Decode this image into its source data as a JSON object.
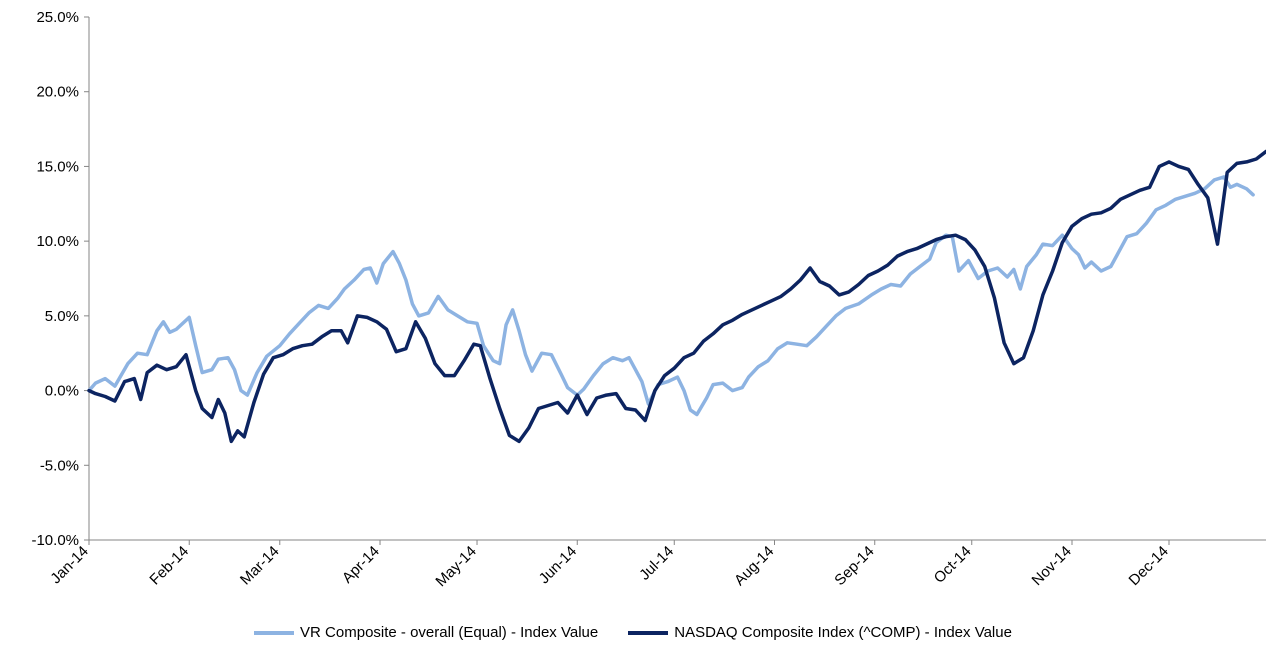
{
  "chart_data": {
    "type": "line",
    "title": "",
    "xlabel": "",
    "ylabel": "",
    "ylim": [
      -0.1,
      0.25
    ],
    "y_ticks": [
      -0.1,
      -0.05,
      0.0,
      0.05,
      0.1,
      0.15,
      0.2,
      0.25
    ],
    "y_tick_labels": [
      "-10.0%",
      "-5.0%",
      "0.0%",
      "5.0%",
      "10.0%",
      "15.0%",
      "20.0%",
      "25.0%"
    ],
    "x_tick_labels": [
      "Jan-14",
      "Feb-14",
      "Mar-14",
      "Apr-14",
      "May-14",
      "Jun-14",
      "Jul-14",
      "Aug-14",
      "Sep-14",
      "Oct-14",
      "Nov-14",
      "Dec-14"
    ],
    "x_start": "2014-01-01",
    "x_end": "2014-12-31",
    "grid": false,
    "legend_position": "bottom",
    "series": [
      {
        "name": "VR Composite - overall (Equal) - Index Value",
        "color": "#8DB3E2",
        "points": [
          [
            "2014-01-01",
            0.0
          ],
          [
            "2014-01-03",
            0.005
          ],
          [
            "2014-01-06",
            0.008
          ],
          [
            "2014-01-09",
            0.003
          ],
          [
            "2014-01-13",
            0.018
          ],
          [
            "2014-01-16",
            0.025
          ],
          [
            "2014-01-19",
            0.024
          ],
          [
            "2014-01-22",
            0.04
          ],
          [
            "2014-01-24",
            0.046
          ],
          [
            "2014-01-26",
            0.039
          ],
          [
            "2014-01-28",
            0.041
          ],
          [
            "2014-02-01",
            0.049
          ],
          [
            "2014-02-03",
            0.03
          ],
          [
            "2014-02-05",
            0.012
          ],
          [
            "2014-02-08",
            0.014
          ],
          [
            "2014-02-10",
            0.021
          ],
          [
            "2014-02-13",
            0.022
          ],
          [
            "2014-02-15",
            0.014
          ],
          [
            "2014-02-17",
            0.0
          ],
          [
            "2014-02-19",
            -0.003
          ],
          [
            "2014-02-22",
            0.012
          ],
          [
            "2014-02-25",
            0.023
          ],
          [
            "2014-03-01",
            0.03
          ],
          [
            "2014-03-04",
            0.038
          ],
          [
            "2014-03-07",
            0.045
          ],
          [
            "2014-03-10",
            0.052
          ],
          [
            "2014-03-13",
            0.057
          ],
          [
            "2014-03-16",
            0.055
          ],
          [
            "2014-03-19",
            0.062
          ],
          [
            "2014-03-21",
            0.068
          ],
          [
            "2014-03-24",
            0.074
          ],
          [
            "2014-03-27",
            0.081
          ],
          [
            "2014-03-29",
            0.082
          ],
          [
            "2014-03-31",
            0.072
          ],
          [
            "2014-04-02",
            0.085
          ],
          [
            "2014-04-05",
            0.093
          ],
          [
            "2014-04-07",
            0.085
          ],
          [
            "2014-04-09",
            0.074
          ],
          [
            "2014-04-11",
            0.058
          ],
          [
            "2014-04-13",
            0.05
          ],
          [
            "2014-04-16",
            0.052
          ],
          [
            "2014-04-19",
            0.063
          ],
          [
            "2014-04-22",
            0.054
          ],
          [
            "2014-04-25",
            0.05
          ],
          [
            "2014-04-28",
            0.046
          ],
          [
            "2014-05-01",
            0.045
          ],
          [
            "2014-05-03",
            0.03
          ],
          [
            "2014-05-06",
            0.02
          ],
          [
            "2014-05-08",
            0.018
          ],
          [
            "2014-05-10",
            0.044
          ],
          [
            "2014-05-12",
            0.054
          ],
          [
            "2014-05-14",
            0.04
          ],
          [
            "2014-05-16",
            0.024
          ],
          [
            "2014-05-18",
            0.013
          ],
          [
            "2014-05-21",
            0.025
          ],
          [
            "2014-05-24",
            0.024
          ],
          [
            "2014-05-27",
            0.011
          ],
          [
            "2014-05-29",
            0.002
          ],
          [
            "2014-06-01",
            -0.003
          ],
          [
            "2014-06-03",
            0.001
          ],
          [
            "2014-06-06",
            0.01
          ],
          [
            "2014-06-09",
            0.018
          ],
          [
            "2014-06-12",
            0.022
          ],
          [
            "2014-06-15",
            0.02
          ],
          [
            "2014-06-17",
            0.022
          ],
          [
            "2014-06-19",
            0.014
          ],
          [
            "2014-06-21",
            0.006
          ],
          [
            "2014-06-23",
            -0.009
          ],
          [
            "2014-06-26",
            0.004
          ],
          [
            "2014-06-29",
            0.006
          ],
          [
            "2014-07-02",
            0.009
          ],
          [
            "2014-07-04",
            0.0
          ],
          [
            "2014-07-06",
            -0.013
          ],
          [
            "2014-07-08",
            -0.016
          ],
          [
            "2014-07-11",
            -0.005
          ],
          [
            "2014-07-13",
            0.004
          ],
          [
            "2014-07-16",
            0.005
          ],
          [
            "2014-07-19",
            0.0
          ],
          [
            "2014-07-22",
            0.002
          ],
          [
            "2014-07-24",
            0.009
          ],
          [
            "2014-07-27",
            0.016
          ],
          [
            "2014-07-30",
            0.02
          ],
          [
            "2014-08-02",
            0.028
          ],
          [
            "2014-08-05",
            0.032
          ],
          [
            "2014-08-08",
            0.031
          ],
          [
            "2014-08-11",
            0.03
          ],
          [
            "2014-08-14",
            0.036
          ],
          [
            "2014-08-17",
            0.043
          ],
          [
            "2014-08-20",
            0.05
          ],
          [
            "2014-08-23",
            0.055
          ],
          [
            "2014-08-27",
            0.058
          ],
          [
            "2014-08-31",
            0.064
          ],
          [
            "2014-09-03",
            0.068
          ],
          [
            "2014-09-06",
            0.071
          ],
          [
            "2014-09-09",
            0.07
          ],
          [
            "2014-09-12",
            0.078
          ],
          [
            "2014-09-15",
            0.083
          ],
          [
            "2014-09-18",
            0.088
          ],
          [
            "2014-09-20",
            0.099
          ],
          [
            "2014-09-23",
            0.104
          ],
          [
            "2014-09-25",
            0.103
          ],
          [
            "2014-09-27",
            0.08
          ],
          [
            "2014-09-30",
            0.087
          ],
          [
            "2014-10-03",
            0.075
          ],
          [
            "2014-10-06",
            0.08
          ],
          [
            "2014-10-09",
            0.082
          ],
          [
            "2014-10-12",
            0.076
          ],
          [
            "2014-10-14",
            0.081
          ],
          [
            "2014-10-16",
            0.068
          ],
          [
            "2014-10-18",
            0.083
          ],
          [
            "2014-10-21",
            0.091
          ],
          [
            "2014-10-23",
            0.098
          ],
          [
            "2014-10-26",
            0.097
          ],
          [
            "2014-10-29",
            0.104
          ],
          [
            "2014-11-01",
            0.095
          ],
          [
            "2014-11-03",
            0.091
          ],
          [
            "2014-11-05",
            0.082
          ],
          [
            "2014-11-07",
            0.086
          ],
          [
            "2014-11-10",
            0.08
          ],
          [
            "2014-11-13",
            0.083
          ],
          [
            "2014-11-15",
            0.091
          ],
          [
            "2014-11-18",
            0.103
          ],
          [
            "2014-11-21",
            0.105
          ],
          [
            "2014-11-24",
            0.112
          ],
          [
            "2014-11-27",
            0.121
          ],
          [
            "2014-11-30",
            0.124
          ],
          [
            "2014-12-03",
            0.128
          ],
          [
            "2014-12-06",
            0.13
          ],
          [
            "2014-12-09",
            0.132
          ],
          [
            "2014-12-12",
            0.135
          ],
          [
            "2014-12-15",
            0.141
          ],
          [
            "2014-12-18",
            0.143
          ],
          [
            "2014-12-20",
            0.136
          ],
          [
            "2014-12-22",
            0.138
          ],
          [
            "2014-12-25",
            0.135
          ],
          [
            "2014-12-27",
            0.131
          ]
        ]
      },
      {
        "name": "NASDAQ Composite Index (^COMP) - Index Value",
        "color": "#0C2461",
        "points": [
          [
            "2014-01-01",
            0.0
          ],
          [
            "2014-01-03",
            -0.002
          ],
          [
            "2014-01-06",
            -0.004
          ],
          [
            "2014-01-09",
            -0.007
          ],
          [
            "2014-01-12",
            0.006
          ],
          [
            "2014-01-15",
            0.008
          ],
          [
            "2014-01-17",
            -0.006
          ],
          [
            "2014-01-19",
            0.012
          ],
          [
            "2014-01-22",
            0.017
          ],
          [
            "2014-01-25",
            0.014
          ],
          [
            "2014-01-28",
            0.016
          ],
          [
            "2014-01-31",
            0.024
          ],
          [
            "2014-02-03",
            0.0
          ],
          [
            "2014-02-05",
            -0.012
          ],
          [
            "2014-02-08",
            -0.018
          ],
          [
            "2014-02-10",
            -0.006
          ],
          [
            "2014-02-12",
            -0.015
          ],
          [
            "2014-02-14",
            -0.034
          ],
          [
            "2014-02-16",
            -0.027
          ],
          [
            "2014-02-18",
            -0.031
          ],
          [
            "2014-02-21",
            -0.008
          ],
          [
            "2014-02-24",
            0.011
          ],
          [
            "2014-02-27",
            0.022
          ],
          [
            "2014-03-02",
            0.024
          ],
          [
            "2014-03-05",
            0.028
          ],
          [
            "2014-03-08",
            0.03
          ],
          [
            "2014-03-11",
            0.031
          ],
          [
            "2014-03-14",
            0.036
          ],
          [
            "2014-03-17",
            0.04
          ],
          [
            "2014-03-20",
            0.04
          ],
          [
            "2014-03-22",
            0.032
          ],
          [
            "2014-03-25",
            0.05
          ],
          [
            "2014-03-28",
            0.049
          ],
          [
            "2014-03-31",
            0.046
          ],
          [
            "2014-04-03",
            0.041
          ],
          [
            "2014-04-06",
            0.026
          ],
          [
            "2014-04-09",
            0.028
          ],
          [
            "2014-04-12",
            0.046
          ],
          [
            "2014-04-15",
            0.035
          ],
          [
            "2014-04-18",
            0.018
          ],
          [
            "2014-04-21",
            0.01
          ],
          [
            "2014-04-24",
            0.01
          ],
          [
            "2014-04-27",
            0.02
          ],
          [
            "2014-04-30",
            0.031
          ],
          [
            "2014-05-02",
            0.03
          ],
          [
            "2014-05-05",
            0.008
          ],
          [
            "2014-05-08",
            -0.012
          ],
          [
            "2014-05-11",
            -0.03
          ],
          [
            "2014-05-14",
            -0.034
          ],
          [
            "2014-05-17",
            -0.025
          ],
          [
            "2014-05-20",
            -0.012
          ],
          [
            "2014-05-23",
            -0.01
          ],
          [
            "2014-05-26",
            -0.008
          ],
          [
            "2014-05-29",
            -0.015
          ],
          [
            "2014-06-01",
            -0.003
          ],
          [
            "2014-06-04",
            -0.016
          ],
          [
            "2014-06-07",
            -0.005
          ],
          [
            "2014-06-10",
            -0.003
          ],
          [
            "2014-06-13",
            -0.002
          ],
          [
            "2014-06-16",
            -0.012
          ],
          [
            "2014-06-19",
            -0.013
          ],
          [
            "2014-06-22",
            -0.02
          ],
          [
            "2014-06-25",
            0.0
          ],
          [
            "2014-06-28",
            0.01
          ],
          [
            "2014-07-01",
            0.015
          ],
          [
            "2014-07-04",
            0.022
          ],
          [
            "2014-07-07",
            0.025
          ],
          [
            "2014-07-10",
            0.033
          ],
          [
            "2014-07-13",
            0.038
          ],
          [
            "2014-07-16",
            0.044
          ],
          [
            "2014-07-19",
            0.047
          ],
          [
            "2014-07-22",
            0.051
          ],
          [
            "2014-07-25",
            0.054
          ],
          [
            "2014-07-28",
            0.057
          ],
          [
            "2014-07-31",
            0.06
          ],
          [
            "2014-08-03",
            0.063
          ],
          [
            "2014-08-06",
            0.068
          ],
          [
            "2014-08-09",
            0.074
          ],
          [
            "2014-08-12",
            0.082
          ],
          [
            "2014-08-15",
            0.073
          ],
          [
            "2014-08-18",
            0.07
          ],
          [
            "2014-08-21",
            0.064
          ],
          [
            "2014-08-24",
            0.066
          ],
          [
            "2014-08-27",
            0.071
          ],
          [
            "2014-08-30",
            0.077
          ],
          [
            "2014-09-02",
            0.08
          ],
          [
            "2014-09-05",
            0.084
          ],
          [
            "2014-09-08",
            0.09
          ],
          [
            "2014-09-11",
            0.093
          ],
          [
            "2014-09-14",
            0.095
          ],
          [
            "2014-09-17",
            0.098
          ],
          [
            "2014-09-20",
            0.101
          ],
          [
            "2014-09-23",
            0.103
          ],
          [
            "2014-09-26",
            0.104
          ],
          [
            "2014-09-29",
            0.101
          ],
          [
            "2014-10-02",
            0.094
          ],
          [
            "2014-10-05",
            0.083
          ],
          [
            "2014-10-08",
            0.062
          ],
          [
            "2014-10-11",
            0.032
          ],
          [
            "2014-10-14",
            0.018
          ],
          [
            "2014-10-17",
            0.022
          ],
          [
            "2014-10-20",
            0.04
          ],
          [
            "2014-10-23",
            0.064
          ],
          [
            "2014-10-26",
            0.08
          ],
          [
            "2014-10-29",
            0.099
          ],
          [
            "2014-11-01",
            0.11
          ],
          [
            "2014-11-04",
            0.115
          ],
          [
            "2014-11-07",
            0.118
          ],
          [
            "2014-11-10",
            0.119
          ],
          [
            "2014-11-13",
            0.122
          ],
          [
            "2014-11-16",
            0.128
          ],
          [
            "2014-11-19",
            0.131
          ],
          [
            "2014-11-22",
            0.134
          ],
          [
            "2014-11-25",
            0.136
          ],
          [
            "2014-11-28",
            0.15
          ],
          [
            "2014-12-01",
            0.153
          ],
          [
            "2014-12-04",
            0.15
          ],
          [
            "2014-12-07",
            0.148
          ],
          [
            "2014-12-10",
            0.138
          ],
          [
            "2014-12-13",
            0.129
          ],
          [
            "2014-12-16",
            0.098
          ],
          [
            "2014-12-19",
            0.146
          ],
          [
            "2014-12-22",
            0.152
          ],
          [
            "2014-12-25",
            0.153
          ],
          [
            "2014-12-28",
            0.155
          ],
          [
            "2014-12-31",
            0.16
          ]
        ]
      }
    ]
  }
}
